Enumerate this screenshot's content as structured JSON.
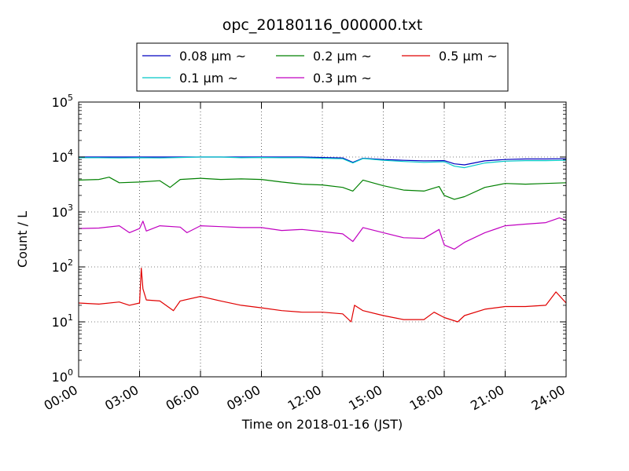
{
  "chart_data": {
    "type": "line",
    "title": "opc_20180116_000000.txt",
    "xlabel": "Time on 2018-01-16 (JST)",
    "ylabel": "Count / L",
    "y_scale": "log",
    "ylim": [
      1,
      100000
    ],
    "y_ticks": [
      {
        "value": 1,
        "base": "10",
        "exp": "0"
      },
      {
        "value": 10,
        "base": "10",
        "exp": "1"
      },
      {
        "value": 100,
        "base": "10",
        "exp": "2"
      },
      {
        "value": 1000,
        "base": "10",
        "exp": "3"
      },
      {
        "value": 10000,
        "base": "10",
        "exp": "4"
      },
      {
        "value": 100000,
        "base": "10",
        "exp": "5"
      }
    ],
    "xlim": [
      "00:00",
      "24:00"
    ],
    "x_ticks": [
      "00:00",
      "03:00",
      "06:00",
      "09:00",
      "12:00",
      "15:00",
      "18:00",
      "21:00",
      "24:00"
    ],
    "grid": true,
    "legend_position": "top, outside plot area, 3 columns",
    "series": [
      {
        "name": "0.08 μm ~",
        "color": "#0000c0",
        "x": [
          "00:00",
          "01:00",
          "02:00",
          "03:00",
          "04:00",
          "05:00",
          "06:00",
          "07:00",
          "08:00",
          "09:00",
          "10:00",
          "11:00",
          "12:00",
          "13:00",
          "13:30",
          "14:00",
          "15:00",
          "16:00",
          "17:00",
          "18:00",
          "18:30",
          "19:00",
          "20:00",
          "21:00",
          "22:00",
          "23:00",
          "24:00"
        ],
        "values": [
          10000,
          10000,
          10000,
          10000,
          10000,
          10000,
          10000,
          10000,
          10000,
          10000,
          10000,
          10000,
          9800,
          9600,
          8000,
          9500,
          9000,
          8700,
          8500,
          8600,
          7500,
          7200,
          8500,
          9000,
          9200,
          9200,
          9300
        ]
      },
      {
        "name": "0.1 μm ~",
        "color": "#00c8c8",
        "x": [
          "00:00",
          "01:00",
          "02:00",
          "03:00",
          "04:00",
          "05:00",
          "06:00",
          "07:00",
          "08:00",
          "09:00",
          "10:00",
          "11:00",
          "12:00",
          "13:00",
          "13:30",
          "14:00",
          "15:00",
          "16:00",
          "17:00",
          "18:00",
          "18:30",
          "19:00",
          "20:00",
          "21:00",
          "22:00",
          "23:00",
          "24:00"
        ],
        "values": [
          9700,
          9700,
          9600,
          9700,
          9600,
          9800,
          10000,
          10000,
          9700,
          9800,
          9700,
          9700,
          9500,
          9300,
          7800,
          9400,
          8700,
          8300,
          8000,
          8200,
          6800,
          6400,
          7800,
          8400,
          8600,
          8600,
          8700
        ]
      },
      {
        "name": "0.2 μm ~",
        "color": "#008000",
        "x": [
          "00:00",
          "01:00",
          "01:30",
          "02:00",
          "03:00",
          "04:00",
          "04:30",
          "05:00",
          "06:00",
          "07:00",
          "08:00",
          "09:00",
          "10:00",
          "11:00",
          "12:00",
          "13:00",
          "13:30",
          "14:00",
          "15:00",
          "16:00",
          "17:00",
          "17:45",
          "18:00",
          "18:30",
          "19:00",
          "20:00",
          "21:00",
          "22:00",
          "23:00",
          "24:00"
        ],
        "values": [
          3800,
          3900,
          4300,
          3400,
          3500,
          3700,
          2800,
          3900,
          4100,
          3900,
          4000,
          3900,
          3500,
          3200,
          3100,
          2800,
          2400,
          3800,
          3000,
          2500,
          2400,
          2900,
          2000,
          1700,
          1900,
          2800,
          3300,
          3200,
          3300,
          3400
        ]
      },
      {
        "name": "0.3 μm ~",
        "color": "#c000c0",
        "x": [
          "00:00",
          "01:00",
          "02:00",
          "02:30",
          "03:00",
          "03:10",
          "03:20",
          "04:00",
          "05:00",
          "05:20",
          "06:00",
          "07:00",
          "08:00",
          "09:00",
          "10:00",
          "11:00",
          "12:00",
          "13:00",
          "13:30",
          "14:00",
          "15:00",
          "16:00",
          "17:00",
          "17:45",
          "18:00",
          "18:30",
          "19:00",
          "20:00",
          "21:00",
          "22:00",
          "23:00",
          "23:40",
          "24:00"
        ],
        "values": [
          500,
          510,
          560,
          420,
          500,
          680,
          450,
          560,
          530,
          420,
          560,
          540,
          520,
          520,
          460,
          480,
          440,
          400,
          290,
          520,
          420,
          340,
          330,
          480,
          250,
          210,
          280,
          420,
          560,
          600,
          640,
          780,
          700
        ]
      },
      {
        "name": "0.5 μm ~",
        "color": "#e00000",
        "x": [
          "00:00",
          "01:00",
          "02:00",
          "02:30",
          "03:00",
          "03:05",
          "03:10",
          "03:20",
          "04:00",
          "04:40",
          "05:00",
          "06:00",
          "07:00",
          "08:00",
          "09:00",
          "10:00",
          "11:00",
          "12:00",
          "13:00",
          "13:25",
          "13:35",
          "14:00",
          "15:00",
          "16:00",
          "17:00",
          "17:30",
          "18:00",
          "18:40",
          "19:00",
          "20:00",
          "21:00",
          "22:00",
          "23:00",
          "23:30",
          "24:00"
        ],
        "values": [
          22,
          21,
          23,
          20,
          22,
          95,
          40,
          25,
          24,
          16,
          24,
          29,
          24,
          20,
          18,
          16,
          15,
          15,
          14,
          10,
          20,
          16,
          13,
          11,
          11,
          15,
          12,
          10,
          13,
          17,
          19,
          19,
          20,
          35,
          22
        ]
      }
    ]
  }
}
